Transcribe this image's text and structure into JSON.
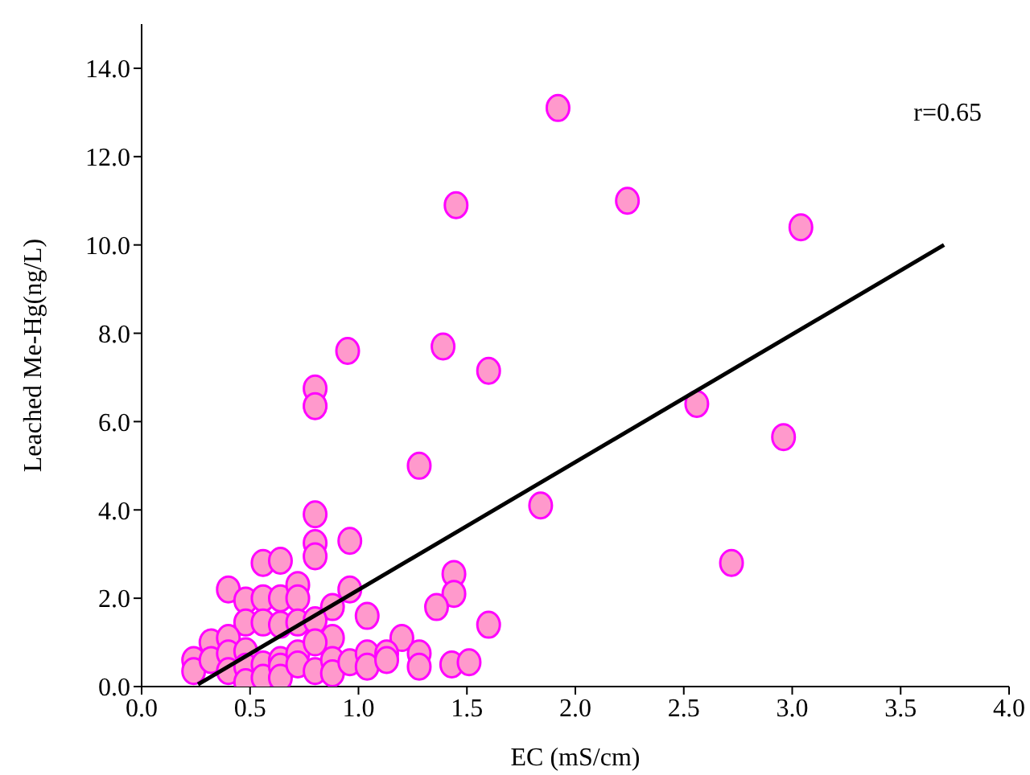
{
  "chart_data": {
    "type": "scatter",
    "xlabel": "EC (mS/cm)",
    "ylabel": "Leached Me-Hg(ng/L)",
    "annotations": [
      "r=0.65"
    ],
    "marker": "circle",
    "xlim": [
      0,
      4.0
    ],
    "xticks": [
      {
        "value": 0,
        "label": "0.0"
      },
      {
        "value": 0.5,
        "label": "0.5"
      },
      {
        "value": 1,
        "label": "1.0"
      },
      {
        "value": 1.5,
        "label": "1.5"
      },
      {
        "value": 2,
        "label": "2.0"
      },
      {
        "value": 2.5,
        "label": "2.5"
      },
      {
        "value": 3,
        "label": "3.0"
      },
      {
        "value": 3.5,
        "label": "3.5"
      },
      {
        "value": 4,
        "label": "4.0"
      }
    ],
    "ylim": [
      0,
      15
    ],
    "yticks": [
      {
        "value": 0,
        "label": "0.0"
      },
      {
        "value": 2,
        "label": "2.0"
      },
      {
        "value": 4,
        "label": "4.0"
      },
      {
        "value": 6,
        "label": "6.0"
      },
      {
        "value": 8,
        "label": "8.0"
      },
      {
        "value": 10,
        "label": "10.0"
      },
      {
        "value": 12,
        "label": "12.0"
      },
      {
        "value": 14,
        "label": "14.0"
      }
    ],
    "series": [
      {
        "type": "scatter",
        "color": "#ff99cc",
        "x": [
          1.92,
          1.45,
          2.24,
          3.04,
          0.95,
          1.39,
          1.6,
          0.8,
          0.8,
          2.56,
          2.96,
          1.28,
          1.84,
          0.8,
          0.8,
          0.8,
          0.96,
          0.56,
          0.64,
          2.72,
          1.44,
          1.44,
          1.36,
          1.6,
          0.4,
          0.48,
          0.56,
          0.64,
          0.72,
          0.72,
          0.88,
          0.96,
          1.04,
          0.48,
          0.56,
          0.64,
          0.72,
          0.8,
          0.32,
          0.4,
          0.88,
          1.2,
          0.24,
          0.24,
          0.32,
          0.4,
          0.4,
          0.48,
          0.48,
          0.48,
          0.56,
          0.56,
          0.64,
          0.64,
          0.64,
          0.72,
          0.72,
          0.8,
          0.8,
          0.88,
          0.88,
          0.96,
          1.04,
          1.04,
          1.13,
          1.13,
          1.28,
          1.28,
          1.43,
          1.51
        ],
        "values": [
          13.1,
          10.9,
          11.0,
          10.4,
          7.6,
          7.7,
          7.15,
          6.75,
          6.35,
          6.4,
          5.65,
          5.0,
          4.1,
          3.9,
          3.25,
          2.95,
          3.3,
          2.8,
          2.85,
          2.8,
          2.55,
          2.1,
          1.8,
          1.4,
          2.2,
          1.95,
          2.0,
          2.0,
          2.3,
          2.0,
          1.8,
          2.2,
          1.6,
          1.45,
          1.45,
          1.4,
          1.45,
          1.5,
          1.0,
          1.1,
          1.1,
          1.1,
          0.6,
          0.35,
          0.6,
          0.75,
          0.35,
          0.8,
          0.45,
          0.1,
          0.5,
          0.2,
          0.6,
          0.45,
          0.2,
          0.75,
          0.5,
          1.0,
          0.35,
          0.6,
          0.3,
          0.55,
          0.75,
          0.45,
          0.75,
          0.6,
          0.75,
          0.45,
          0.5,
          0.55
        ]
      },
      {
        "type": "line",
        "marker": "none",
        "color": "#000000",
        "x": [
          0.26,
          3.7
        ],
        "values": [
          0.05,
          10.0
        ]
      }
    ]
  }
}
